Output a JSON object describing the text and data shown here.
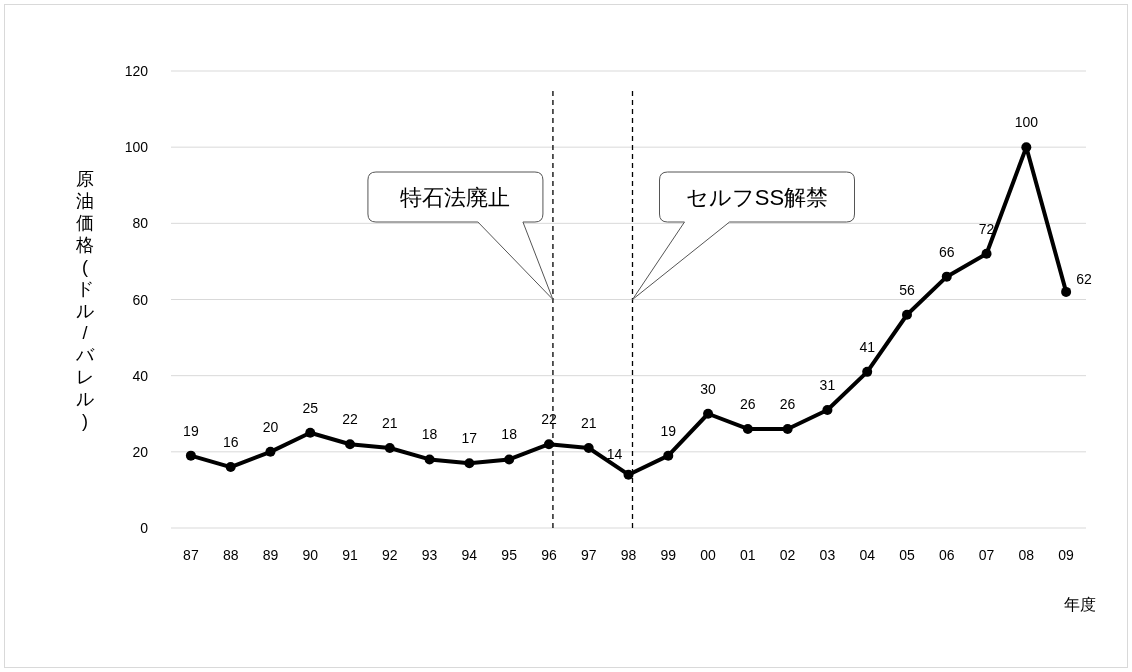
{
  "chart_data": {
    "type": "line",
    "xlabel": "年度",
    "ylabel": "原油価格(ドル/バレル)",
    "categories": [
      "87",
      "88",
      "89",
      "90",
      "91",
      "92",
      "93",
      "94",
      "95",
      "96",
      "97",
      "98",
      "99",
      "00",
      "01",
      "02",
      "03",
      "04",
      "05",
      "06",
      "07",
      "08",
      "09"
    ],
    "series": [
      {
        "color": "#000000",
        "values": [
          19,
          16,
          20,
          25,
          22,
          21,
          18,
          17,
          18,
          22,
          21,
          14,
          19,
          30,
          26,
          26,
          31,
          41,
          56,
          66,
          72,
          100,
          62
        ]
      }
    ],
    "ylim": [
      0,
      120
    ],
    "yticks": [
      0,
      20,
      40,
      60,
      80,
      100,
      120
    ],
    "grid": "y",
    "marker": "circle",
    "line_style": "solid",
    "data_labels": true,
    "ref_lines": [
      {
        "axis": "x",
        "value": "96",
        "line_style": "dashed",
        "color": "#000000",
        "label": "特石法廃止"
      },
      {
        "axis": "x",
        "value": "98",
        "line_style": "dashed",
        "color": "#000000",
        "label": "セルフSS解禁"
      }
    ]
  }
}
